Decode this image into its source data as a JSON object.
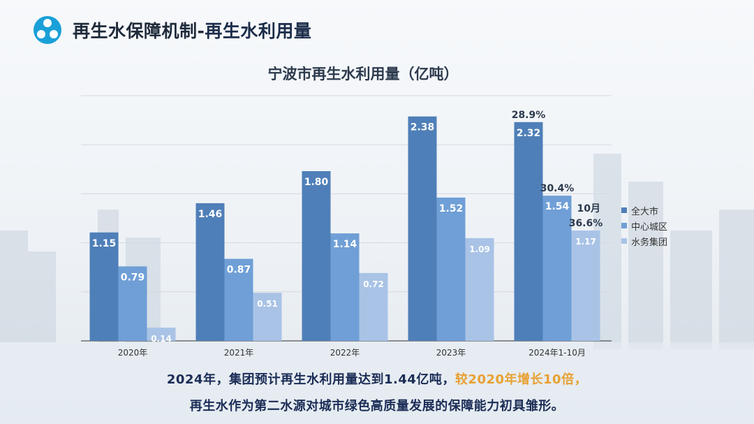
{
  "header": {
    "title_part1": "再生水保障机制-",
    "title_part2": "再生水利用量"
  },
  "colors": {
    "series1": "#4f7fb8",
    "series2": "#6f9fd6",
    "series3": "#a9c3e6",
    "highlight": "#e8a033",
    "caption": "#1b2c56"
  },
  "chart_data": {
    "type": "bar",
    "title": "宁波市再生水利用量（亿吨）",
    "xlabel": "",
    "ylabel": "",
    "ylim": [
      0,
      2.6
    ],
    "grid": true,
    "legend_position": "right",
    "categories": [
      "2020年",
      "2021年",
      "2022年",
      "2023年",
      "2024年1-10月"
    ],
    "series": [
      {
        "name": "全大市",
        "values": [
          1.15,
          1.46,
          1.8,
          2.38,
          2.32
        ]
      },
      {
        "name": "中心城区",
        "values": [
          0.79,
          0.87,
          1.14,
          1.52,
          1.54
        ]
      },
      {
        "name": "水务集团",
        "values": [
          0.14,
          0.51,
          0.72,
          1.09,
          1.17
        ]
      }
    ],
    "data_labels": [
      [
        "1.15",
        "1.46",
        "1.80",
        "2.38",
        "2.32"
      ],
      [
        "0.79",
        "0.87",
        "1.14",
        "1.52",
        "1.54"
      ],
      [
        "0.14",
        "0.51",
        "0.72",
        "1.09",
        "1.17"
      ]
    ],
    "annotations": [
      {
        "category_index": 4,
        "series_index": 0,
        "text": "28.9%"
      },
      {
        "category_index": 4,
        "series_index": 1,
        "text": "30.4%"
      },
      {
        "category_index": 4,
        "series_index": 2,
        "text": "36.6%"
      },
      {
        "category_index": 4,
        "series_index": 2,
        "text": "10月"
      }
    ]
  },
  "caption": {
    "line1_main": "2024年，集团预计再生水利用量达到1.44亿吨，",
    "line1_highlight": "较2020年增长10倍，",
    "line2": "再生水作为第二水源对城市绿色高质量发展的保障能力初具雏形。"
  }
}
